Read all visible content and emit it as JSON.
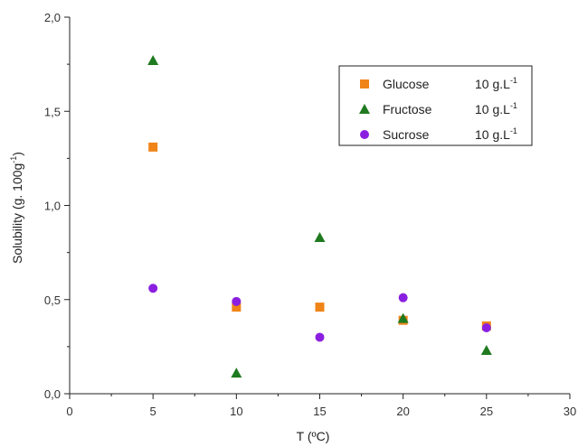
{
  "chart_data": {
    "type": "scatter",
    "xlabel": "T (ºC)",
    "ylabel": "Solubility (g. 100g",
    "ylabel_sup": "-1",
    "ylabel_close": ")",
    "xlim": [
      0,
      30
    ],
    "ylim": [
      0,
      2.0
    ],
    "x_ticks": [
      "0",
      "5",
      "10",
      "15",
      "20",
      "25",
      "30"
    ],
    "y_ticks": [
      "0,0",
      "0,5",
      "1,0",
      "1,5",
      "2,0"
    ],
    "grid": false,
    "legend_position": "top-right",
    "series": [
      {
        "name": "Glucose",
        "concentration": "10 g.L",
        "conc_sup": "-1",
        "marker": "square",
        "color": "#f08418",
        "points": [
          [
            5,
            1.31
          ],
          [
            10,
            0.46
          ],
          [
            15,
            0.46
          ],
          [
            20,
            0.39
          ],
          [
            25,
            0.36
          ]
        ]
      },
      {
        "name": "Fructose",
        "concentration": "10 g.L",
        "conc_sup": "-1",
        "marker": "triangle",
        "color": "#1f7a1f",
        "points": [
          [
            5,
            1.77
          ],
          [
            10,
            0.11
          ],
          [
            15,
            0.83
          ],
          [
            20,
            0.4
          ],
          [
            25,
            0.23
          ]
        ]
      },
      {
        "name": "Sucrose",
        "concentration": "10 g.L",
        "conc_sup": "-1",
        "marker": "circle",
        "color": "#8b1fe0",
        "points": [
          [
            5,
            0.56
          ],
          [
            10,
            0.49
          ],
          [
            15,
            0.3
          ],
          [
            20,
            0.51
          ],
          [
            25,
            0.35
          ]
        ]
      }
    ]
  }
}
